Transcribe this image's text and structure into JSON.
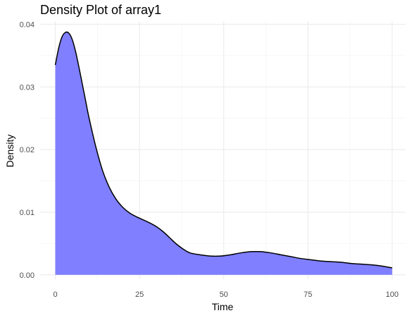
{
  "chart_data": {
    "type": "area",
    "title": "Density Plot of array1",
    "xlabel": "Time",
    "ylabel": "Density",
    "xlim": [
      -4.5,
      104
    ],
    "ylim": [
      -0.0007,
      0.0405
    ],
    "x_ticks": [
      0,
      25,
      50,
      75,
      100
    ],
    "x_tick_labels": [
      "0",
      "25",
      "50",
      "75",
      "100"
    ],
    "y_ticks": [
      0,
      0.01,
      0.02,
      0.03,
      0.04
    ],
    "y_tick_labels": [
      "0.00",
      "0.01",
      "0.02",
      "0.03",
      "0.04"
    ],
    "grid": true,
    "fill_color": "#7f7fff",
    "line_color": "#000000",
    "x": [
      0,
      1,
      2,
      3,
      4,
      5,
      6,
      7,
      8,
      9,
      10,
      12,
      14,
      16,
      18,
      20,
      22,
      24,
      26,
      28,
      30,
      32,
      34,
      36,
      38,
      40,
      43,
      46,
      49,
      52,
      55,
      58,
      61,
      64,
      67,
      70,
      73,
      76,
      79,
      82,
      85,
      88,
      91,
      94,
      97,
      100
    ],
    "y": [
      0.0335,
      0.0362,
      0.038,
      0.0387,
      0.0386,
      0.0376,
      0.0357,
      0.0332,
      0.0305,
      0.0278,
      0.0251,
      0.0205,
      0.0167,
      0.014,
      0.0121,
      0.0108,
      0.0099,
      0.0093,
      0.0088,
      0.0083,
      0.0077,
      0.0069,
      0.0059,
      0.0049,
      0.0041,
      0.0035,
      0.0032,
      0.003,
      0.003,
      0.0032,
      0.0035,
      0.0037,
      0.0037,
      0.0035,
      0.0032,
      0.0029,
      0.0026,
      0.0024,
      0.0022,
      0.0021,
      0.002,
      0.0018,
      0.0017,
      0.0016,
      0.0014,
      0.0011
    ]
  }
}
